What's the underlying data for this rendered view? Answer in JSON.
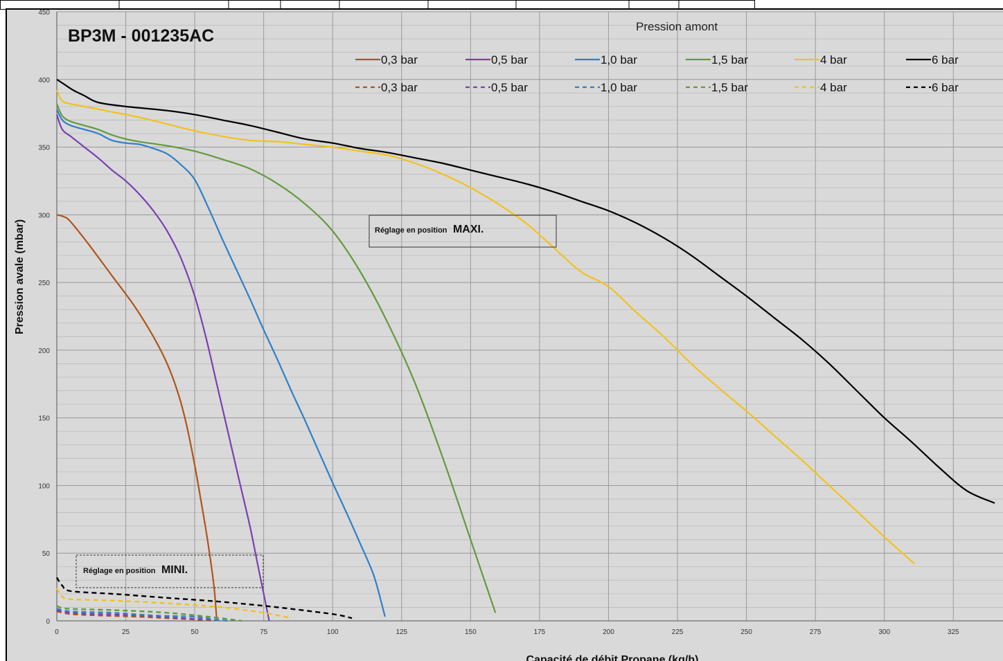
{
  "chart_data": {
    "type": "line",
    "title": "BP3M - 001235AC",
    "xlabel": "Capacité de débit Propane (kg/h)",
    "ylabel": "Pression avale (mbar)",
    "legend_title": "Pression amont",
    "legend_position": "top-right",
    "xlim": [
      0,
      340
    ],
    "ylim": [
      0,
      450
    ],
    "x_ticks": [
      0,
      25,
      50,
      75,
      100,
      125,
      150,
      175,
      200,
      225,
      250,
      275,
      300,
      325
    ],
    "y_ticks": [
      0,
      50,
      100,
      150,
      200,
      250,
      300,
      350,
      400,
      450
    ],
    "grid": true,
    "annotations": [
      {
        "prefix": "Réglage en position",
        "emphasis": "MAXI."
      },
      {
        "prefix": "Réglage en position",
        "emphasis": "MINI."
      }
    ],
    "series": [
      {
        "name": "0,3 bar",
        "color": "#b0541a",
        "dash": false,
        "points": [
          [
            0,
            300
          ],
          [
            2,
            299
          ],
          [
            4,
            297
          ],
          [
            7,
            290
          ],
          [
            12,
            277
          ],
          [
            20,
            255
          ],
          [
            28,
            233
          ],
          [
            35,
            210
          ],
          [
            40,
            190
          ],
          [
            44,
            168
          ],
          [
            47,
            145
          ],
          [
            50,
            115
          ],
          [
            53,
            80
          ],
          [
            55,
            55
          ],
          [
            57,
            25
          ],
          [
            58,
            0
          ]
        ]
      },
      {
        "name": "0,5 bar",
        "color": "#7b3fb4",
        "dash": false,
        "points": [
          [
            0,
            374
          ],
          [
            2,
            363
          ],
          [
            5,
            358
          ],
          [
            10,
            350
          ],
          [
            15,
            342
          ],
          [
            20,
            333
          ],
          [
            25,
            325
          ],
          [
            30,
            315
          ],
          [
            35,
            303
          ],
          [
            40,
            288
          ],
          [
            45,
            268
          ],
          [
            50,
            240
          ],
          [
            54,
            210
          ],
          [
            58,
            175
          ],
          [
            62,
            140
          ],
          [
            66,
            105
          ],
          [
            70,
            70
          ],
          [
            73,
            40
          ],
          [
            75,
            20
          ],
          [
            77,
            0
          ]
        ]
      },
      {
        "name": "1,0 bar",
        "color": "#2f7fc8",
        "dash": false,
        "points": [
          [
            0,
            378
          ],
          [
            2,
            370
          ],
          [
            5,
            366
          ],
          [
            10,
            363
          ],
          [
            15,
            360
          ],
          [
            20,
            355
          ],
          [
            25,
            353
          ],
          [
            30,
            352
          ],
          [
            35,
            349
          ],
          [
            40,
            345
          ],
          [
            45,
            337
          ],
          [
            50,
            326
          ],
          [
            55,
            305
          ],
          [
            60,
            282
          ],
          [
            65,
            260
          ],
          [
            70,
            238
          ],
          [
            75,
            215
          ],
          [
            80,
            193
          ],
          [
            85,
            170
          ],
          [
            90,
            148
          ],
          [
            95,
            125
          ],
          [
            100,
            102
          ],
          [
            105,
            80
          ],
          [
            110,
            57
          ],
          [
            115,
            33
          ],
          [
            119,
            3
          ]
        ]
      },
      {
        "name": "1,5 bar",
        "color": "#639a3d",
        "dash": false,
        "points": [
          [
            0,
            382
          ],
          [
            2,
            373
          ],
          [
            5,
            369
          ],
          [
            10,
            366
          ],
          [
            15,
            363
          ],
          [
            20,
            359
          ],
          [
            25,
            356
          ],
          [
            30,
            354
          ],
          [
            40,
            351
          ],
          [
            50,
            347
          ],
          [
            60,
            341
          ],
          [
            70,
            334
          ],
          [
            80,
            323
          ],
          [
            90,
            308
          ],
          [
            100,
            288
          ],
          [
            110,
            258
          ],
          [
            120,
            220
          ],
          [
            130,
            175
          ],
          [
            140,
            120
          ],
          [
            150,
            60
          ],
          [
            155,
            30
          ],
          [
            159,
            6
          ]
        ]
      },
      {
        "name": "4 bar",
        "color": "#f2c21b",
        "dash": false,
        "points": [
          [
            0,
            392
          ],
          [
            2,
            384
          ],
          [
            5,
            382
          ],
          [
            10,
            380
          ],
          [
            20,
            376
          ],
          [
            30,
            372
          ],
          [
            40,
            367
          ],
          [
            50,
            362
          ],
          [
            60,
            358
          ],
          [
            70,
            355
          ],
          [
            80,
            354
          ],
          [
            90,
            352
          ],
          [
            100,
            350
          ],
          [
            110,
            347
          ],
          [
            120,
            344
          ],
          [
            130,
            338
          ],
          [
            140,
            330
          ],
          [
            150,
            320
          ],
          [
            160,
            308
          ],
          [
            170,
            294
          ],
          [
            180,
            276
          ],
          [
            190,
            258
          ],
          [
            200,
            247
          ],
          [
            210,
            228
          ],
          [
            220,
            210
          ],
          [
            230,
            190
          ],
          [
            240,
            172
          ],
          [
            250,
            155
          ],
          [
            260,
            137
          ],
          [
            270,
            119
          ],
          [
            280,
            100
          ],
          [
            290,
            81
          ],
          [
            300,
            62
          ],
          [
            311,
            42
          ]
        ]
      },
      {
        "name": "6 bar",
        "color": "#000000",
        "dash": false,
        "points": [
          [
            0,
            400
          ],
          [
            3,
            396
          ],
          [
            6,
            392
          ],
          [
            10,
            388
          ],
          [
            15,
            383
          ],
          [
            25,
            380
          ],
          [
            40,
            377
          ],
          [
            50,
            374
          ],
          [
            60,
            370
          ],
          [
            70,
            366
          ],
          [
            80,
            361
          ],
          [
            90,
            356
          ],
          [
            100,
            353
          ],
          [
            110,
            349
          ],
          [
            120,
            346
          ],
          [
            130,
            342
          ],
          [
            140,
            338
          ],
          [
            150,
            333
          ],
          [
            160,
            328
          ],
          [
            170,
            323
          ],
          [
            180,
            317
          ],
          [
            190,
            310
          ],
          [
            200,
            303
          ],
          [
            210,
            294
          ],
          [
            220,
            283
          ],
          [
            230,
            270
          ],
          [
            240,
            255
          ],
          [
            250,
            240
          ],
          [
            260,
            224
          ],
          [
            270,
            208
          ],
          [
            280,
            190
          ],
          [
            290,
            170
          ],
          [
            300,
            150
          ],
          [
            310,
            132
          ],
          [
            320,
            113
          ],
          [
            330,
            96
          ],
          [
            340,
            87
          ]
        ]
      },
      {
        "name": "0,3 bar",
        "color": "#b0541a",
        "dash": true,
        "points": [
          [
            0,
            7
          ],
          [
            5,
            5
          ],
          [
            15,
            4
          ],
          [
            30,
            3
          ],
          [
            40,
            2
          ],
          [
            50,
            1
          ],
          [
            57,
            0
          ]
        ]
      },
      {
        "name": "0,5 bar",
        "color": "#7b3fb4",
        "dash": true,
        "points": [
          [
            0,
            8
          ],
          [
            5,
            6
          ],
          [
            15,
            5
          ],
          [
            30,
            4
          ],
          [
            45,
            2
          ],
          [
            55,
            1
          ],
          [
            60,
            0
          ]
        ]
      },
      {
        "name": "1,0 bar",
        "color": "#2f7fc8",
        "dash": true,
        "points": [
          [
            0,
            9
          ],
          [
            5,
            7
          ],
          [
            20,
            6
          ],
          [
            35,
            4
          ],
          [
            50,
            3
          ],
          [
            57,
            1
          ],
          [
            62,
            0
          ]
        ]
      },
      {
        "name": "1,5 bar",
        "color": "#639a3d",
        "dash": true,
        "points": [
          [
            0,
            11
          ],
          [
            4,
            9
          ],
          [
            20,
            8
          ],
          [
            40,
            6
          ],
          [
            55,
            3
          ],
          [
            67,
            0
          ]
        ]
      },
      {
        "name": "4 bar",
        "color": "#f2c21b",
        "dash": true,
        "points": [
          [
            0,
            24
          ],
          [
            2,
            18
          ],
          [
            5,
            16
          ],
          [
            20,
            15
          ],
          [
            40,
            13
          ],
          [
            60,
            10
          ],
          [
            75,
            6
          ],
          [
            85,
            2
          ]
        ]
      },
      {
        "name": "6 bar",
        "color": "#000000",
        "dash": true,
        "points": [
          [
            0,
            32
          ],
          [
            2,
            26
          ],
          [
            5,
            22
          ],
          [
            20,
            20
          ],
          [
            40,
            17
          ],
          [
            60,
            14
          ],
          [
            80,
            10
          ],
          [
            100,
            5
          ],
          [
            107,
            2
          ]
        ]
      }
    ]
  }
}
